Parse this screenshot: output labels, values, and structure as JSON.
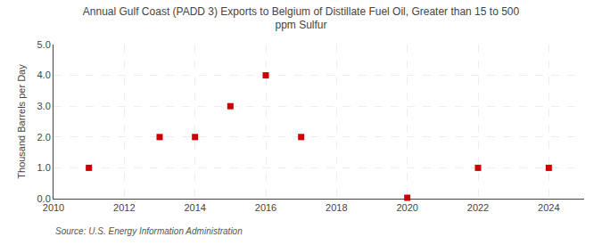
{
  "chart_data": {
    "type": "scatter",
    "title": "Annual Gulf Coast (PADD 3) Exports to Belgium of Distillate Fuel Oil, Greater than 15 to 500\nppm Sulfur",
    "y_label": "Thousand Barrels per Day",
    "annotations": [
      "Source: U.S. Energy Information Administration"
    ],
    "x": [
      2011,
      2013,
      2014,
      2015,
      2016,
      2017,
      2020,
      2022,
      2024
    ],
    "values": [
      1.0,
      2.0,
      2.0,
      3.0,
      4.0,
      2.0,
      0.03,
      1.0,
      1.0
    ],
    "color": "#cc0000",
    "marker": "square",
    "xlim": [
      2010,
      2025
    ],
    "ylim": [
      0.0,
      5.0
    ],
    "xticks": [
      2010,
      2012,
      2014,
      2016,
      2018,
      2020,
      2022,
      2024
    ],
    "yticks": [
      {
        "value": 0,
        "label": "0.0"
      },
      {
        "value": 1,
        "label": "1.0"
      },
      {
        "value": 2,
        "label": "2.0"
      },
      {
        "value": 3,
        "label": "3.0"
      },
      {
        "value": 4,
        "label": "4.0"
      },
      {
        "value": 5,
        "label": "5.0"
      }
    ],
    "grid": true
  }
}
